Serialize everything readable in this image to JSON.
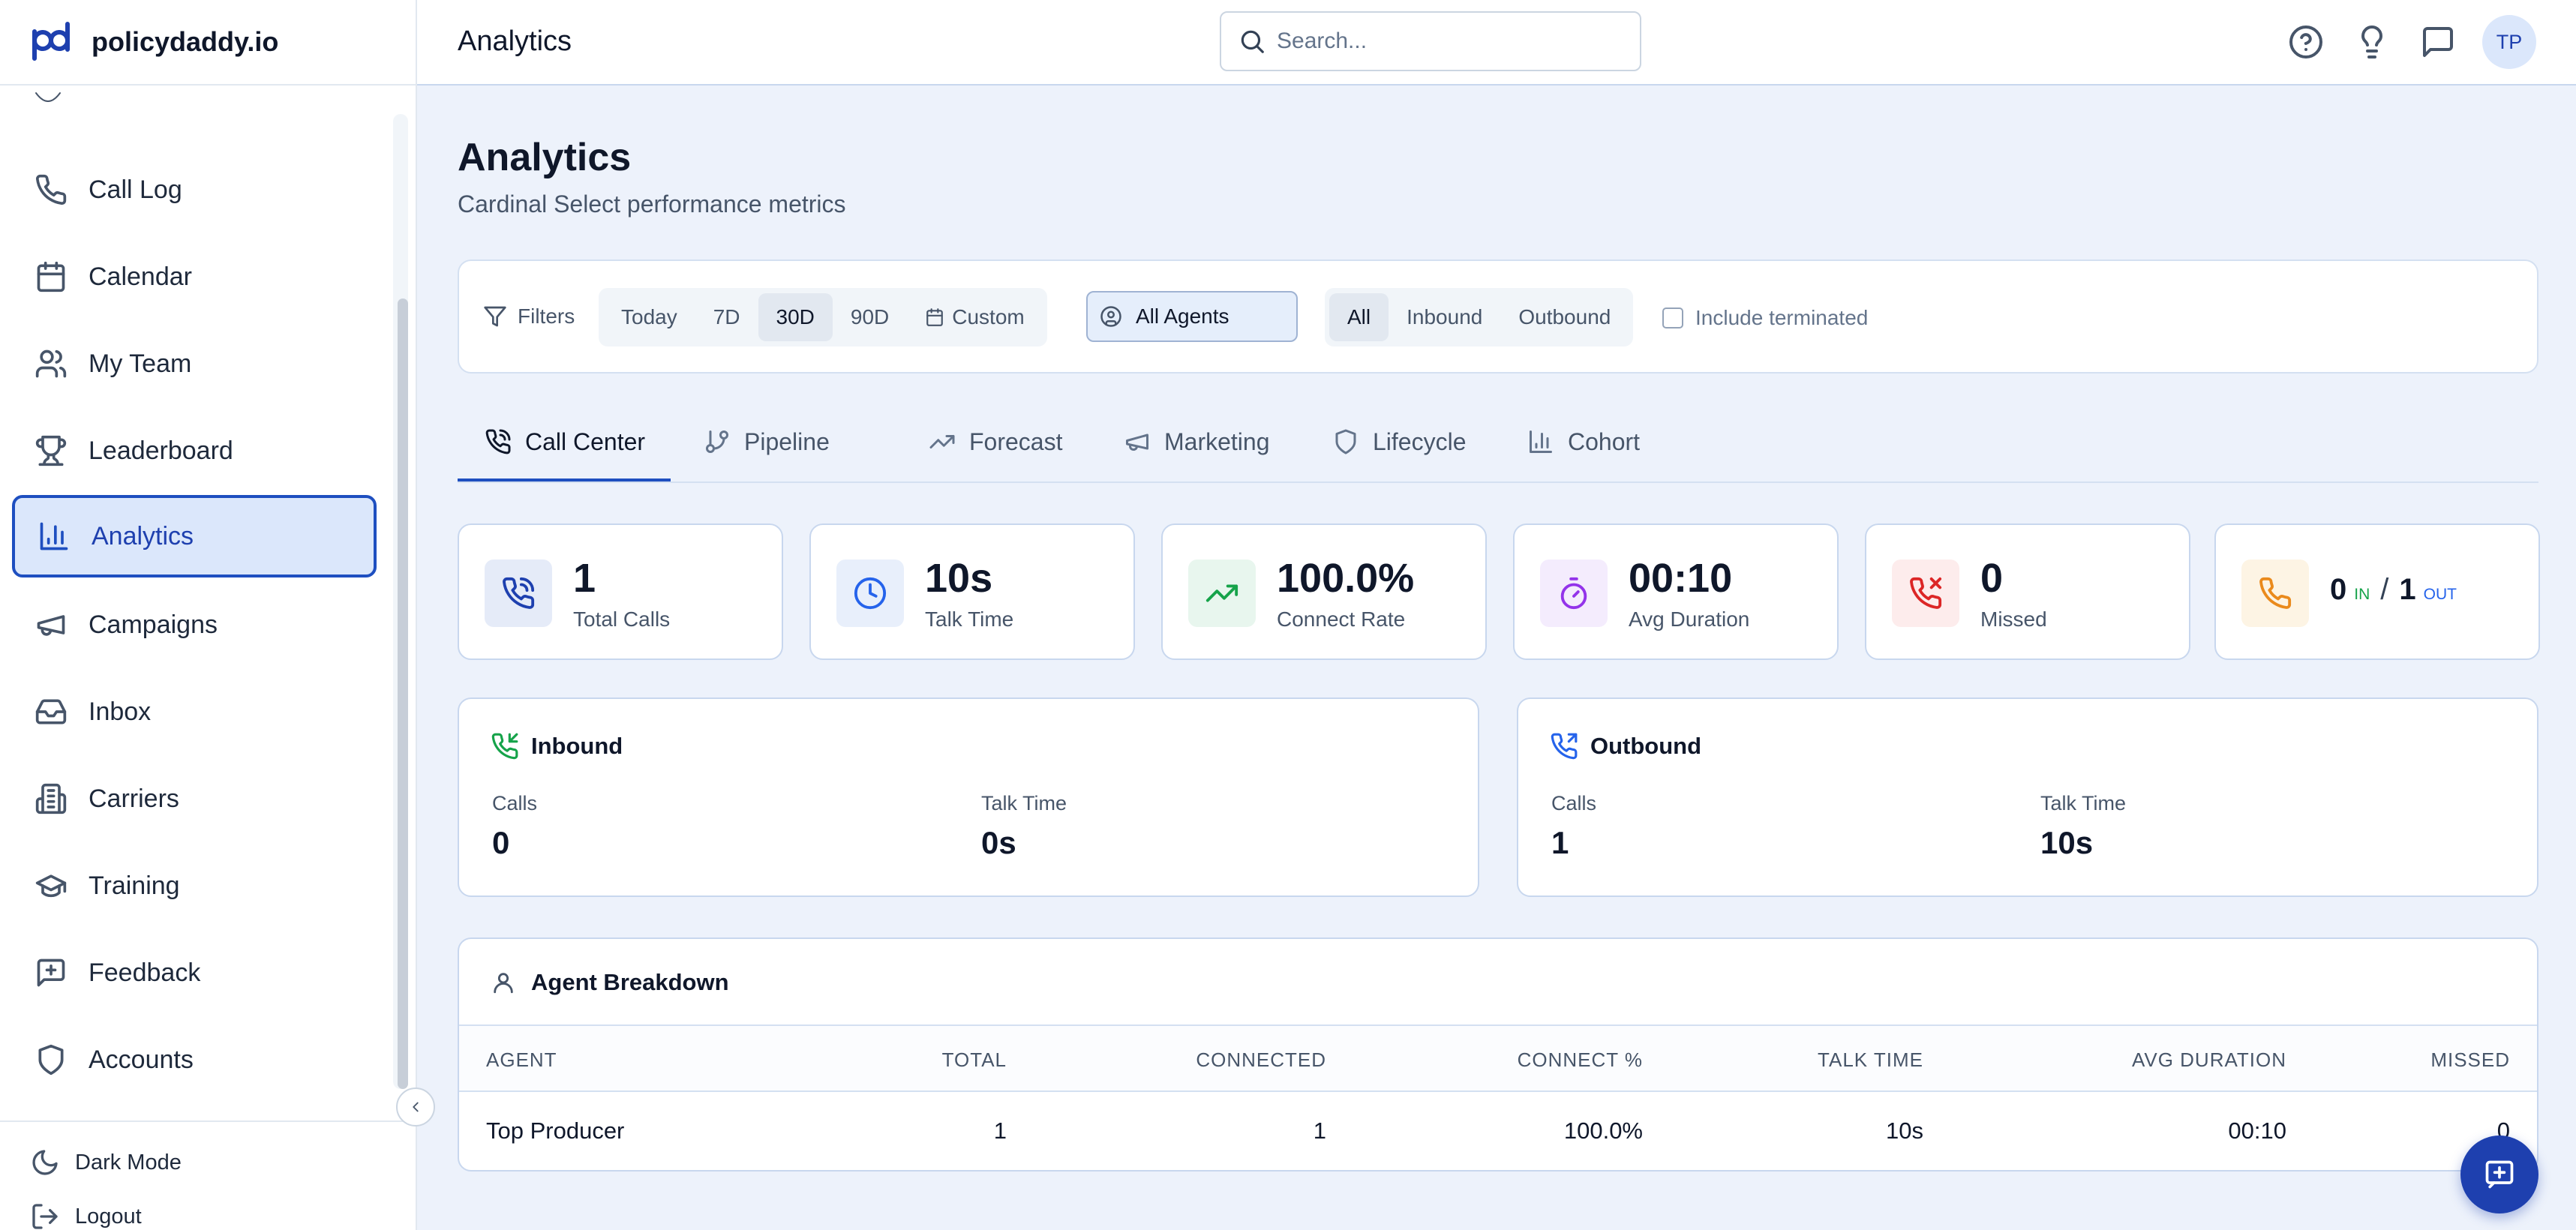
{
  "brand": {
    "name": "policydaddy.io"
  },
  "sidebar": {
    "items": [
      {
        "label": "Call Log",
        "icon": "phone-icon"
      },
      {
        "label": "Calendar",
        "icon": "calendar-icon"
      },
      {
        "label": "My Team",
        "icon": "users-icon"
      },
      {
        "label": "Leaderboard",
        "icon": "trophy-icon"
      },
      {
        "label": "Analytics",
        "icon": "bar-chart-icon",
        "active": true
      },
      {
        "label": "Campaigns",
        "icon": "megaphone-icon"
      },
      {
        "label": "Inbox",
        "icon": "inbox-icon"
      },
      {
        "label": "Carriers",
        "icon": "building-icon"
      },
      {
        "label": "Training",
        "icon": "graduation-cap-icon"
      },
      {
        "label": "Feedback",
        "icon": "message-plus-icon"
      },
      {
        "label": "Accounts",
        "icon": "shield-icon"
      }
    ],
    "dark_mode_label": "Dark Mode",
    "logout_label": "Logout"
  },
  "header": {
    "title": "Analytics",
    "search_placeholder": "Search...",
    "avatar_initials": "TP"
  },
  "page": {
    "title": "Analytics",
    "subtitle": "Cardinal Select performance metrics"
  },
  "filters": {
    "label": "Filters",
    "ranges": [
      "Today",
      "7D",
      "30D",
      "90D"
    ],
    "selected_range": "30D",
    "custom_label": "Custom",
    "agent_select": "All Agents",
    "directions": [
      "All",
      "Inbound",
      "Outbound"
    ],
    "selected_direction": "All",
    "include_terminated_label": "Include terminated",
    "include_terminated": false
  },
  "tabs": [
    {
      "label": "Call Center",
      "icon": "phone-call-icon",
      "active": true
    },
    {
      "label": "Pipeline",
      "icon": "git-branch-icon"
    },
    {
      "label": "Forecast",
      "icon": "trending-up-icon"
    },
    {
      "label": "Marketing",
      "icon": "megaphone-icon"
    },
    {
      "label": "Lifecycle",
      "icon": "shield-icon"
    },
    {
      "label": "Cohort",
      "icon": "bar-chart-icon"
    }
  ],
  "kpis": [
    {
      "value": "1",
      "label": "Total Calls",
      "icon": "phone-call-icon",
      "color": "#1e40af",
      "bg": "#e5ebf8"
    },
    {
      "value": "10s",
      "label": "Talk Time",
      "icon": "clock-icon",
      "color": "#2563eb",
      "bg": "#e8effb"
    },
    {
      "value": "100.0%",
      "label": "Connect Rate",
      "icon": "trending-up-icon",
      "color": "#16a34a",
      "bg": "#e8f6ee"
    },
    {
      "value": "00:10",
      "label": "Avg Duration",
      "icon": "timer-icon",
      "color": "#9333ea",
      "bg": "#f4ecfd"
    },
    {
      "value": "0",
      "label": "Missed",
      "icon": "phone-missed-icon",
      "color": "#dc2626",
      "bg": "#fdecec"
    }
  ],
  "split_kpi": {
    "in_value": "0",
    "in_label": "IN",
    "slash": "/",
    "out_value": "1",
    "out_label": "OUT",
    "icon": "phone-icon",
    "color": "#ea8a1c",
    "bg": "#fdf4e4"
  },
  "inbound": {
    "title": "Inbound",
    "calls_label": "Calls",
    "calls": "0",
    "talk_label": "Talk Time",
    "talk": "0s",
    "color": "#16a34a"
  },
  "outbound": {
    "title": "Outbound",
    "calls_label": "Calls",
    "calls": "1",
    "talk_label": "Talk Time",
    "talk": "10s",
    "color": "#2563eb"
  },
  "agent_breakdown": {
    "title": "Agent Breakdown",
    "columns": [
      "AGENT",
      "TOTAL",
      "CONNECTED",
      "CONNECT %",
      "TALK TIME",
      "AVG DURATION",
      "MISSED"
    ],
    "rows": [
      [
        "Top Producer",
        "1",
        "1",
        "100.0%",
        "10s",
        "00:10",
        "0"
      ]
    ]
  }
}
